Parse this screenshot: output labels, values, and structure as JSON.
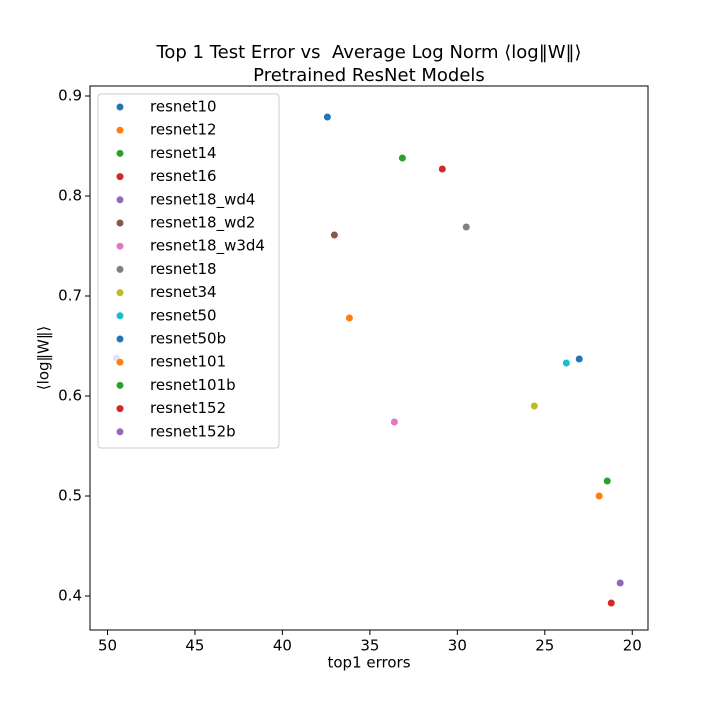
{
  "chart_data": {
    "type": "scatter",
    "title": [
      "Top 1 Test Error vs  Average Log Norm ⟨log‖W‖⟩",
      "Pretrained ResNet Models"
    ],
    "x_label": "top1 errors",
    "y_label": "⟨log‖W‖⟩",
    "xlim": [
      51.0,
      19.1
    ],
    "ylim": [
      0.366,
      0.91
    ],
    "xticks": [
      50,
      45,
      40,
      35,
      30,
      25,
      20
    ],
    "yticks": [
      0.4,
      0.5,
      0.6,
      0.7,
      0.8,
      0.9
    ],
    "legend": "upper left",
    "series": [
      {
        "name": "resnet10",
        "color": "#1f77b4",
        "x": [
          37.43
        ],
        "values": [
          0.879
        ]
      },
      {
        "name": "resnet12",
        "color": "#ff7f0e",
        "x": [
          36.17
        ],
        "values": [
          0.678
        ]
      },
      {
        "name": "resnet14",
        "color": "#2ca02c",
        "x": [
          33.14
        ],
        "values": [
          0.838
        ]
      },
      {
        "name": "resnet16",
        "color": "#d62728",
        "x": [
          30.86
        ],
        "values": [
          0.827
        ]
      },
      {
        "name": "resnet18_wd4",
        "color": "#9467bd",
        "x": [
          49.49
        ],
        "values": [
          0.638
        ]
      },
      {
        "name": "resnet18_wd2",
        "color": "#8c564b",
        "x": [
          37.03
        ],
        "values": [
          0.761
        ]
      },
      {
        "name": "resnet18_w3d4",
        "color": "#e377c2",
        "x": [
          33.6
        ],
        "values": [
          0.574
        ]
      },
      {
        "name": "resnet18",
        "color": "#7f7f7f",
        "x": [
          29.49
        ],
        "values": [
          0.769
        ]
      },
      {
        "name": "resnet34",
        "color": "#bcbd22",
        "x": [
          25.6
        ],
        "values": [
          0.59
        ]
      },
      {
        "name": "resnet50",
        "color": "#17becf",
        "x": [
          23.77
        ],
        "values": [
          0.633
        ]
      },
      {
        "name": "resnet50b",
        "color": "#1f77b4",
        "x": [
          23.03
        ],
        "values": [
          0.637
        ]
      },
      {
        "name": "resnet101",
        "color": "#ff7f0e",
        "x": [
          21.89
        ],
        "values": [
          0.5
        ]
      },
      {
        "name": "resnet101b",
        "color": "#2ca02c",
        "x": [
          21.43
        ],
        "values": [
          0.515
        ]
      },
      {
        "name": "resnet152",
        "color": "#d62728",
        "x": [
          21.2
        ],
        "values": [
          0.393
        ]
      },
      {
        "name": "resnet152b",
        "color": "#9467bd",
        "x": [
          20.69
        ],
        "values": [
          0.413
        ]
      }
    ]
  }
}
